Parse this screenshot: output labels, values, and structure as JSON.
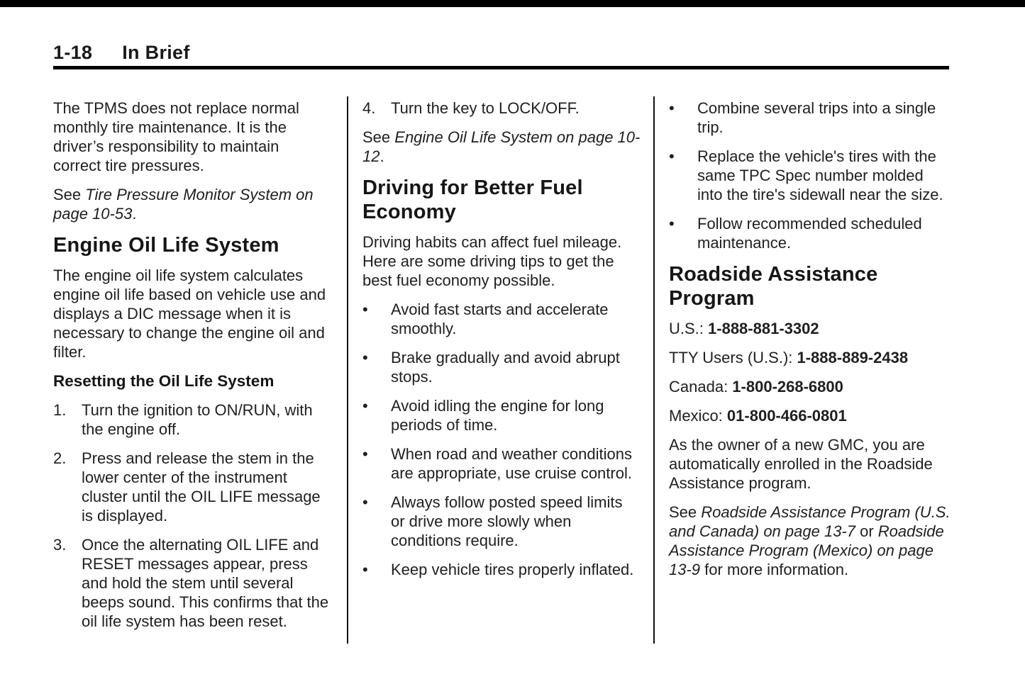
{
  "header": {
    "page_number": "1-18",
    "section_title": "In Brief"
  },
  "colors": {
    "text": "#1f1f1f",
    "rule": "#000000",
    "top_bar": "#000000"
  },
  "columns": [
    {
      "name": "left",
      "blocks": [
        {
          "type": "paragraph",
          "runs": [
            {
              "t": "The TPMS does not replace normal monthly tire maintenance. It is the driver’s responsibility to maintain correct tire pressures."
            }
          ]
        },
        {
          "type": "paragraph",
          "runs": [
            {
              "t": "See "
            },
            {
              "t": "Tire Pressure Monitor System on page 10-53",
              "s": "i"
            },
            {
              "t": "."
            }
          ]
        },
        {
          "type": "heading",
          "runs": [
            {
              "t": "Engine Oil Life System"
            }
          ]
        },
        {
          "type": "paragraph",
          "runs": [
            {
              "t": "The engine oil life system calculates engine oil life based on vehicle use and displays a DIC message when it is necessary to change the engine oil and filter."
            }
          ]
        },
        {
          "type": "subheading",
          "runs": [
            {
              "t": "Resetting the Oil Life System"
            }
          ]
        },
        {
          "type": "numbered",
          "marker": "1.",
          "runs": [
            {
              "t": "Turn the ignition to ON/RUN, with the engine off."
            }
          ]
        },
        {
          "type": "numbered",
          "marker": "2.",
          "runs": [
            {
              "t": "Press and release the stem in the lower center of the instrument cluster until the OIL LIFE message is displayed."
            }
          ]
        },
        {
          "type": "numbered",
          "marker": "3.",
          "runs": [
            {
              "t": "Once the alternating OIL LIFE and RESET messages appear, press and hold the stem until several beeps sound. This confirms that the oil life system has been reset."
            }
          ]
        }
      ]
    },
    {
      "name": "middle",
      "blocks": [
        {
          "type": "numbered",
          "marker": "4.",
          "runs": [
            {
              "t": "Turn the key to LOCK/OFF."
            }
          ]
        },
        {
          "type": "paragraph",
          "runs": [
            {
              "t": "See "
            },
            {
              "t": "Engine Oil Life System on page 10-12",
              "s": "i"
            },
            {
              "t": "."
            }
          ]
        },
        {
          "type": "heading",
          "runs": [
            {
              "t": "Driving for Better Fuel Economy"
            }
          ]
        },
        {
          "type": "paragraph",
          "runs": [
            {
              "t": "Driving habits can affect fuel mileage. Here are some driving tips to get the best fuel economy possible."
            }
          ]
        },
        {
          "type": "bullet",
          "runs": [
            {
              "t": "Avoid fast starts and accelerate smoothly."
            }
          ]
        },
        {
          "type": "bullet",
          "runs": [
            {
              "t": "Brake gradually and avoid abrupt stops."
            }
          ]
        },
        {
          "type": "bullet",
          "runs": [
            {
              "t": "Avoid idling the engine for long periods of time."
            }
          ]
        },
        {
          "type": "bullet",
          "runs": [
            {
              "t": "When road and weather conditions are appropriate, use cruise control."
            }
          ]
        },
        {
          "type": "bullet",
          "runs": [
            {
              "t": "Always follow posted speed limits or drive more slowly when conditions require."
            }
          ]
        },
        {
          "type": "bullet",
          "runs": [
            {
              "t": "Keep vehicle tires properly inflated."
            }
          ]
        }
      ]
    },
    {
      "name": "right",
      "blocks": [
        {
          "type": "bullet",
          "runs": [
            {
              "t": "Combine several trips into a single trip."
            }
          ]
        },
        {
          "type": "bullet",
          "runs": [
            {
              "t": "Replace the vehicle's tires with the same TPC Spec number molded into the tire's sidewall near the size."
            }
          ]
        },
        {
          "type": "bullet",
          "runs": [
            {
              "t": "Follow recommended scheduled maintenance."
            }
          ]
        },
        {
          "type": "heading",
          "runs": [
            {
              "t": "Roadside Assistance Program"
            }
          ]
        },
        {
          "type": "paragraph",
          "runs": [
            {
              "t": "U.S.: "
            },
            {
              "t": "1-888-881-3302",
              "s": "b"
            }
          ]
        },
        {
          "type": "paragraph",
          "runs": [
            {
              "t": "TTY Users (U.S.): "
            },
            {
              "t": "1-888-889-2438",
              "s": "b"
            }
          ]
        },
        {
          "type": "paragraph",
          "runs": [
            {
              "t": "Canada: "
            },
            {
              "t": "1-800-268-6800",
              "s": "b"
            }
          ]
        },
        {
          "type": "paragraph",
          "runs": [
            {
              "t": "Mexico: "
            },
            {
              "t": "01-800-466-0801",
              "s": "b"
            }
          ]
        },
        {
          "type": "paragraph",
          "runs": [
            {
              "t": "As the owner of a new GMC, you are automatically enrolled in the Roadside Assistance program."
            }
          ]
        },
        {
          "type": "paragraph",
          "runs": [
            {
              "t": "See "
            },
            {
              "t": "Roadside Assistance Program (U.S. and Canada) on page 13-7",
              "s": "i"
            },
            {
              "t": " or "
            },
            {
              "t": "Roadside Assistance Program (Mexico) on page 13-9",
              "s": "i"
            },
            {
              "t": " for more information."
            }
          ]
        }
      ]
    }
  ],
  "bullet_glyph": "•"
}
